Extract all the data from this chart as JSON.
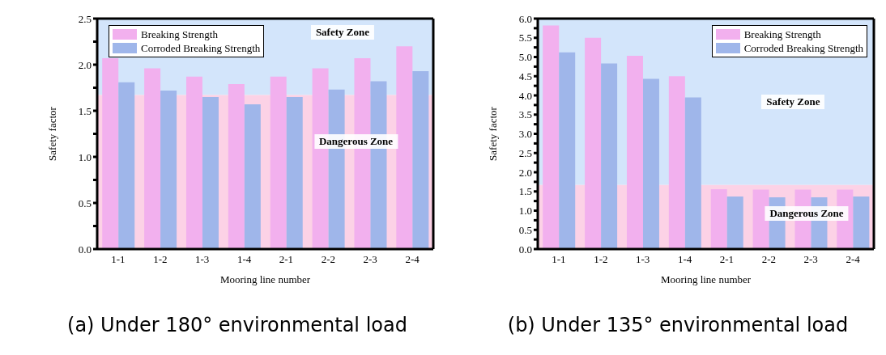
{
  "chart_data": [
    {
      "type": "bar",
      "xlabel": "Mooring line number",
      "ylabel": "Safety factor",
      "categories": [
        "1-1",
        "1-2",
        "1-3",
        "1-4",
        "2-1",
        "2-2",
        "2-3",
        "2-4"
      ],
      "series": [
        {
          "name": "Breaking Strength",
          "color": "#f2b0ee",
          "values": [
            2.07,
            1.96,
            1.87,
            1.79,
            1.87,
            1.96,
            2.07,
            2.2
          ]
        },
        {
          "name": "Corroded Breaking Strength",
          "color": "#9fb6ea",
          "values": [
            1.81,
            1.72,
            1.65,
            1.57,
            1.65,
            1.73,
            1.82,
            1.93
          ]
        }
      ],
      "ylim": [
        0,
        2.5
      ],
      "yticks": [
        {
          "value": 0,
          "label": "0.0"
        },
        {
          "value": 0.25,
          "label": null
        },
        0.5,
        {
          "value": 0.75,
          "label": null
        },
        {
          "value": 1,
          "label": "1.0"
        },
        {
          "value": 1.25,
          "label": null
        },
        1.5,
        {
          "value": 1.75,
          "label": null
        },
        {
          "value": 2,
          "label": "2.0"
        },
        {
          "value": 2.25,
          "label": null
        },
        2.5
      ],
      "bands": [
        {
          "axis": "y",
          "from": 1.67,
          "to": 2.5,
          "label": "Safety Zone",
          "color": "#d3e5fb"
        },
        {
          "axis": "y",
          "from": 0,
          "to": 1.67,
          "label": "Dangerous Zone",
          "color": "#fcd2e6"
        }
      ],
      "legend": "top left",
      "grid": false,
      "annotations": [
        "(a) Under 180° environmental load"
      ]
    },
    {
      "type": "bar",
      "xlabel": "Mooring line number",
      "ylabel": "Safety factor",
      "categories": [
        "1-1",
        "1-2",
        "1-3",
        "1-4",
        "2-1",
        "2-2",
        "2-3",
        "2-4"
      ],
      "series": [
        {
          "name": "Breaking Strength",
          "color": "#f2b0ee",
          "values": [
            5.82,
            5.5,
            5.03,
            4.5,
            1.56,
            1.55,
            1.55,
            1.55
          ]
        },
        {
          "name": "Corroded Breaking Strength",
          "color": "#9fb6ea",
          "values": [
            5.12,
            4.83,
            4.43,
            3.95,
            1.37,
            1.35,
            1.35,
            1.37
          ]
        }
      ],
      "ylim": [
        0,
        6
      ],
      "yticks": [
        {
          "value": 0,
          "label": "0.0"
        },
        {
          "value": 0.25,
          "label": null
        },
        0.5,
        {
          "value": 0.75,
          "label": null
        },
        {
          "value": 1,
          "label": "1.0"
        },
        {
          "value": 1.25,
          "label": null
        },
        1.5,
        {
          "value": 1.75,
          "label": null
        },
        {
          "value": 2,
          "label": "2.0"
        },
        {
          "value": 2.25,
          "label": null
        },
        2.5,
        {
          "value": 2.75,
          "label": null
        },
        {
          "value": 3,
          "label": "3.0"
        },
        {
          "value": 3.25,
          "label": null
        },
        3.5,
        {
          "value": 3.75,
          "label": null
        },
        {
          "value": 4,
          "label": "4.0"
        },
        {
          "value": 4.25,
          "label": null
        },
        4.5,
        {
          "value": 4.75,
          "label": null
        },
        {
          "value": 5,
          "label": "5.0"
        },
        {
          "value": 5.25,
          "label": null
        },
        5.5,
        {
          "value": 5.75,
          "label": null
        },
        {
          "value": 6,
          "label": "6.0"
        }
      ],
      "bands": [
        {
          "axis": "y",
          "from": 1.67,
          "to": 6,
          "label": "Safety Zone",
          "color": "#d3e5fb"
        },
        {
          "axis": "y",
          "from": 0,
          "to": 1.67,
          "label": "Dangerous Zone",
          "color": "#fcd2e6"
        }
      ],
      "legend": "top right",
      "grid": false,
      "annotations": [
        "(b) Under 135° environmental load"
      ]
    }
  ]
}
